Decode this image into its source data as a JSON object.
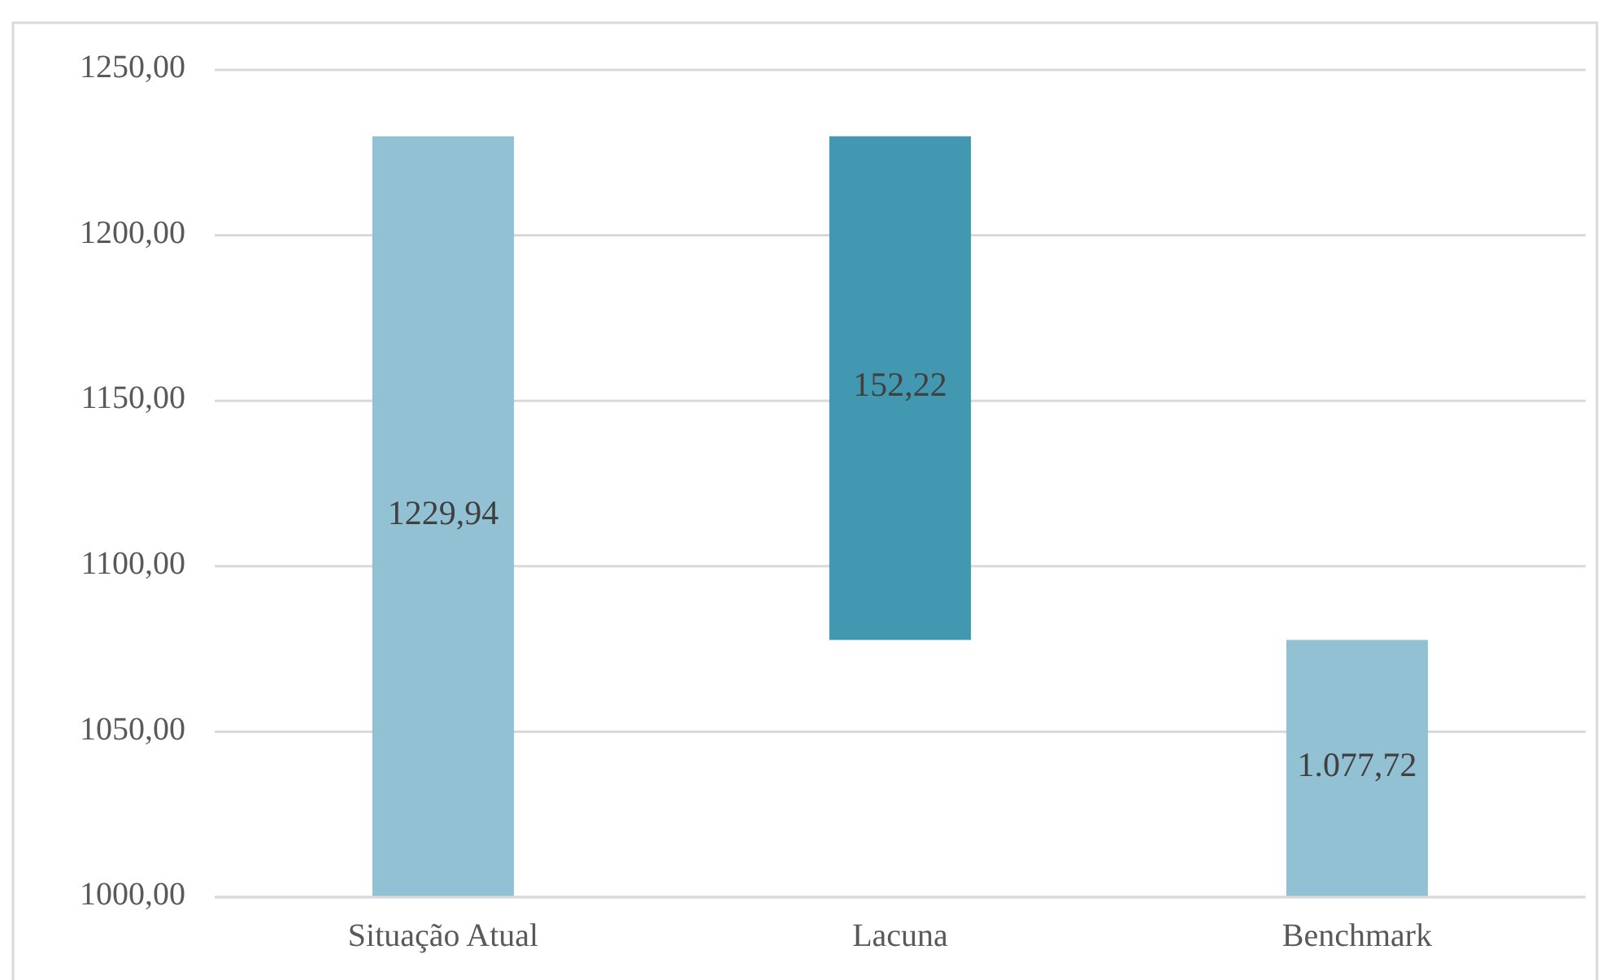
{
  "chart_data": {
    "type": "bar",
    "categories": [
      "Situação Atual",
      "Lacuna",
      "Benchmark"
    ],
    "values": [
      1229.94,
      152.22,
      1077.72
    ],
    "base": [
      0,
      1077.72,
      0
    ],
    "colors": [
      "#92c1d3",
      "#4298b0",
      "#92c1d3"
    ],
    "value_labels": [
      "1229,94",
      "152,22",
      "1.077,72"
    ],
    "ylim": [
      1000,
      1250
    ],
    "yticks": [
      {
        "value": 1000,
        "label": "1000,00"
      },
      {
        "value": 1050,
        "label": "1050,00"
      },
      {
        "value": 1100,
        "label": "1100,00"
      },
      {
        "value": 1150,
        "label": "1150,00"
      },
      {
        "value": 1200,
        "label": "1200,00"
      },
      {
        "value": 1250,
        "label": "1250,00"
      }
    ],
    "grid": "y"
  }
}
